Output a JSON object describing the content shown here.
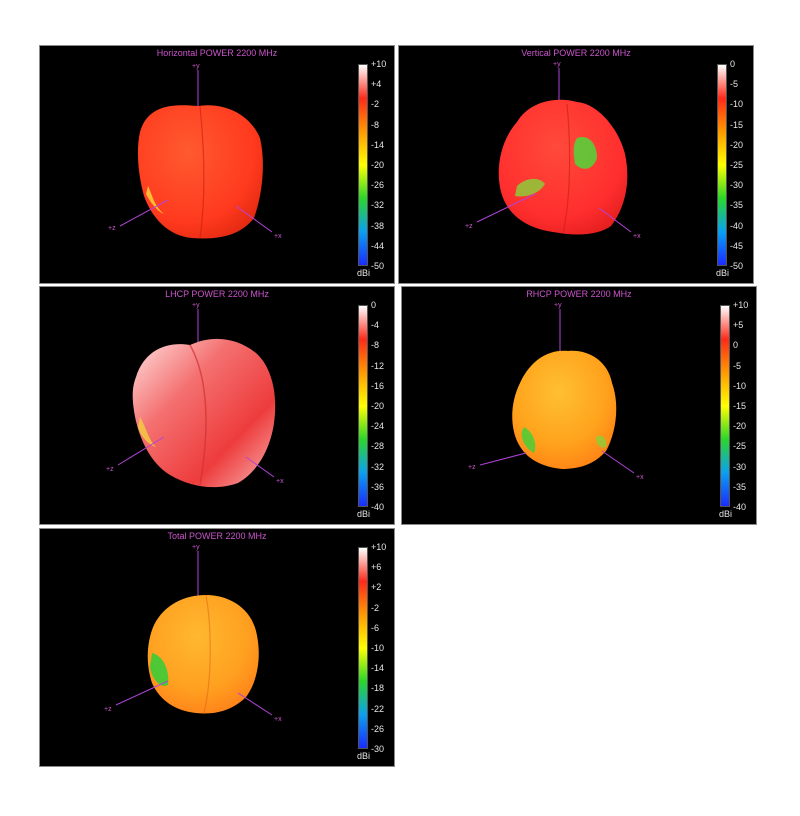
{
  "colors": {
    "background": "#000000",
    "title": "#cc55cc",
    "axis": "#b044d8",
    "tick_text": "#e6e6e6",
    "colormap": [
      "#1a2cff",
      "#0aa0f0",
      "#2bd62a",
      "#ffff00",
      "#ff9a00",
      "#ff2a1a",
      "#ffffff"
    ]
  },
  "axes_labels": {
    "y": "+y",
    "x": "+x",
    "z": "+z"
  },
  "chart_data": [
    {
      "type": "heatmap",
      "title": "Horizontal POWER 2200  MHz",
      "unit": "dBi",
      "ticks": [
        "+10",
        "+4",
        "-2",
        "-8",
        "-14",
        "-20",
        "-26",
        "-32",
        "-38",
        "-44",
        "-50"
      ],
      "range": [
        -50,
        10
      ],
      "dominant_color": "#ff3a1e"
    },
    {
      "type": "heatmap",
      "title": "Vertical POWER 2200  MHz",
      "unit": "dBi",
      "ticks": [
        "0",
        "-5",
        "-10",
        "-15",
        "-20",
        "-25",
        "-30",
        "-35",
        "-40",
        "-45",
        "-50"
      ],
      "range": [
        -50,
        0
      ],
      "dominant_color": "#ff2e2e"
    },
    {
      "type": "heatmap",
      "title": "LHCP POWER 2200  MHz",
      "unit": "dBi",
      "ticks": [
        "0",
        "-4",
        "-8",
        "-12",
        "-16",
        "-20",
        "-24",
        "-28",
        "-32",
        "-36",
        "-40"
      ],
      "range": [
        -40,
        0
      ],
      "dominant_color": "#f04848"
    },
    {
      "type": "heatmap",
      "title": "RHCP POWER 2200  MHz",
      "unit": "dBi",
      "ticks": [
        "+10",
        "+5",
        "0",
        "-5",
        "-10",
        "-15",
        "-20",
        "-25",
        "-30",
        "-35",
        "-40"
      ],
      "range": [
        -40,
        10
      ],
      "dominant_color": "#ffa21c"
    },
    {
      "type": "heatmap",
      "title": "Total POWER 2200  MHz",
      "unit": "dBi",
      "ticks": [
        "+10",
        "+6",
        "+2",
        "-2",
        "-6",
        "-10",
        "-14",
        "-18",
        "-22",
        "-26",
        "-30"
      ],
      "range": [
        -30,
        10
      ],
      "dominant_color": "#ffa020"
    }
  ]
}
